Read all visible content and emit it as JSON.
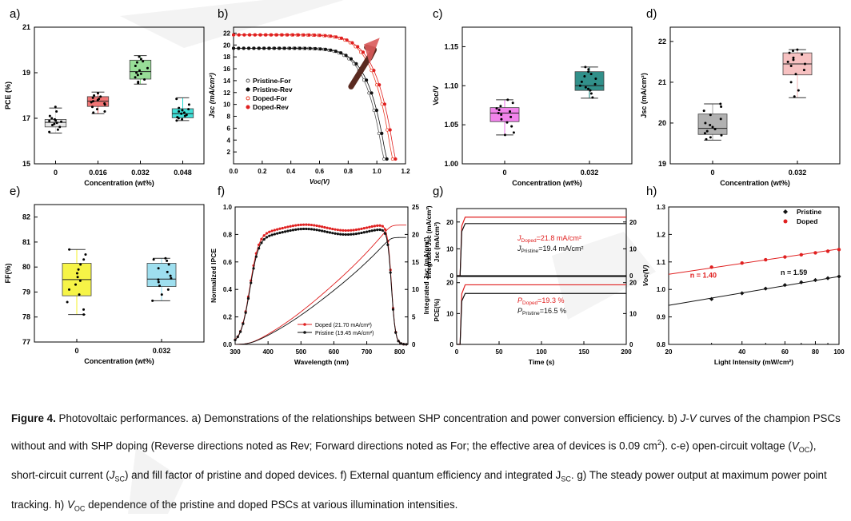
{
  "chart_data": [
    {
      "panel": "a)",
      "type": "box",
      "ylabel": "PCE (%)",
      "xlabel": "Concentration (wt%)",
      "ylim": [
        15,
        21
      ],
      "yticks": [
        15,
        17,
        19,
        21
      ],
      "categories": [
        "0",
        "0.016",
        "0.032",
        "0.048"
      ],
      "colors": [
        "#e3e3e3",
        "#ee5c5c",
        "#86d886",
        "#1ed9d0"
      ],
      "boxes": [
        {
          "min": 16.35,
          "q1": 16.62,
          "median": 16.82,
          "q3": 16.95,
          "max": 17.45,
          "points": [
            17.5,
            17.3,
            17.1,
            17.0,
            16.95,
            16.9,
            16.88,
            16.85,
            16.8,
            16.75,
            16.7,
            16.62,
            16.5,
            16.4
          ]
        },
        {
          "min": 17.2,
          "q1": 17.52,
          "median": 17.75,
          "q3": 17.95,
          "max": 18.15,
          "points": [
            18.1,
            18.0,
            17.95,
            17.9,
            17.85,
            17.8,
            17.75,
            17.7,
            17.65,
            17.6,
            17.5,
            17.4,
            17.3,
            17.25
          ]
        },
        {
          "min": 18.5,
          "q1": 18.72,
          "median": 19.05,
          "q3": 19.55,
          "max": 19.75,
          "points": [
            19.7,
            19.6,
            19.5,
            19.45,
            19.3,
            19.2,
            19.1,
            19.0,
            18.95,
            18.9,
            18.8,
            18.7,
            18.6,
            18.55
          ]
        },
        {
          "min": 16.9,
          "q1": 17.02,
          "median": 17.2,
          "q3": 17.42,
          "max": 17.9,
          "points": [
            17.85,
            17.6,
            17.45,
            17.4,
            17.35,
            17.3,
            17.25,
            17.2,
            17.15,
            17.1,
            17.05,
            17.0,
            16.95,
            16.9
          ]
        }
      ]
    },
    {
      "panel": "b)",
      "type": "line",
      "ylabel": "Jsc (mA/cm²)",
      "xlabel": "Voc(V)",
      "xlim": [
        0.0,
        1.2
      ],
      "ylim": [
        0,
        23
      ],
      "xticks": [
        "0.0",
        "0.2",
        "0.4",
        "0.6",
        "0.8",
        "1.0",
        "1.2"
      ],
      "yticks": [
        2,
        4,
        6,
        8,
        10,
        12,
        14,
        16,
        18,
        20,
        22
      ],
      "series": [
        {
          "name": "Pristine-For",
          "color": "#555555",
          "filled": false,
          "jsc": 19.45,
          "voc": 1.05
        },
        {
          "name": "Pristine-Rev",
          "color": "#111111",
          "filled": true,
          "jsc": 19.45,
          "voc": 1.07
        },
        {
          "name": "Doped-For",
          "color": "#e8412a",
          "filled": false,
          "jsc": 21.7,
          "voc": 1.11
        },
        {
          "name": "Doped-Rev",
          "color": "#e02020",
          "filled": true,
          "jsc": 21.7,
          "voc": 1.13
        }
      ]
    },
    {
      "panel": "c)",
      "type": "box",
      "ylabel": "Voc/V",
      "xlabel": "Concentration (wt%)",
      "ylim": [
        1.0,
        1.175
      ],
      "yticks": [
        "1.00",
        "1.05",
        "1.10",
        "1.15"
      ],
      "categories": [
        "0",
        "0.032"
      ],
      "colors": [
        "#ee6de8",
        "#0d7c76"
      ],
      "boxes": [
        {
          "min": 1.037,
          "q1": 1.054,
          "median": 1.065,
          "q3": 1.072,
          "max": 1.082,
          "points": [
            1.082,
            1.078,
            1.074,
            1.071,
            1.069,
            1.067,
            1.065,
            1.063,
            1.06,
            1.057,
            1.053,
            1.048,
            1.04,
            1.037
          ]
        },
        {
          "min": 1.084,
          "q1": 1.094,
          "median": 1.1,
          "q3": 1.118,
          "max": 1.124,
          "points": [
            1.124,
            1.121,
            1.118,
            1.115,
            1.112,
            1.109,
            1.105,
            1.102,
            1.1,
            1.098,
            1.096,
            1.094,
            1.09,
            1.085
          ]
        }
      ]
    },
    {
      "panel": "d)",
      "type": "box",
      "ylabel": "Jsc (mA/cm²)",
      "xlabel": "Concentration (wt%)",
      "ylim": [
        19,
        22.35
      ],
      "yticks": [
        19,
        20,
        21,
        22
      ],
      "categories": [
        "0",
        "0.032"
      ],
      "colors": [
        "#a3a3a3",
        "#f6b6b6"
      ],
      "boxes": [
        {
          "min": 19.58,
          "q1": 19.72,
          "median": 19.87,
          "q3": 20.22,
          "max": 20.47,
          "points": [
            20.47,
            20.4,
            20.3,
            20.2,
            20.1,
            20.0,
            19.95,
            19.9,
            19.85,
            19.8,
            19.75,
            19.7,
            19.65,
            19.6
          ]
        },
        {
          "min": 20.62,
          "q1": 21.18,
          "median": 21.45,
          "q3": 21.72,
          "max": 21.8,
          "points": [
            21.8,
            21.77,
            21.72,
            21.68,
            21.6,
            21.55,
            21.5,
            21.45,
            21.4,
            21.3,
            21.2,
            21.0,
            20.8,
            20.65
          ]
        }
      ]
    },
    {
      "panel": "e)",
      "type": "box",
      "ylabel": "FF(%)",
      "xlabel": "Concentration (wt%)",
      "ylim": [
        77,
        82.5
      ],
      "yticks": [
        77,
        78,
        79,
        80,
        81,
        82
      ],
      "categories": [
        "0",
        "0.032"
      ],
      "colors": [
        "#f5f227",
        "#8dd9ec"
      ],
      "boxes": [
        {
          "min": 78.1,
          "q1": 78.85,
          "median": 79.5,
          "q3": 80.15,
          "max": 80.7,
          "points": [
            80.7,
            80.5,
            80.3,
            80.1,
            79.9,
            79.75,
            79.6,
            79.45,
            79.3,
            79.1,
            78.9,
            78.6,
            78.3,
            78.1
          ]
        },
        {
          "min": 78.65,
          "q1": 79.22,
          "median": 79.52,
          "q3": 80.15,
          "max": 80.35,
          "points": [
            80.35,
            80.3,
            80.25,
            80.1,
            79.95,
            79.8,
            79.65,
            79.55,
            79.5,
            79.4,
            79.25,
            79.1,
            78.9,
            78.65
          ]
        }
      ]
    },
    {
      "panel": "f)",
      "type": "line",
      "ylabel": "Normalized IPCE",
      "y2label": "Integrated Jsc (mA/cm²)",
      "xlabel": "Wavelength (nm)",
      "xlim": [
        300,
        825
      ],
      "ylim": [
        0,
        1.0
      ],
      "y2lim": [
        0,
        25
      ],
      "xticks": [
        300,
        400,
        500,
        600,
        700,
        800
      ],
      "yticks": [
        "0.0",
        "0.2",
        "0.4",
        "0.6",
        "0.8",
        "1.0"
      ],
      "y2ticks": [
        0,
        5,
        10,
        15,
        20,
        25
      ],
      "series": [
        {
          "name": "Doped",
          "legend_label": "Doped    (21.70 mA/cm²)",
          "color": "#e02020",
          "plateau": 0.85,
          "integrated_final": 21.7
        },
        {
          "name": "Pristine",
          "legend_label": "Pristine (19.45 mA/cm²)",
          "color": "#111111",
          "plateau": 0.82,
          "integrated_final": 19.45
        }
      ]
    },
    {
      "panel": "g)",
      "type": "line",
      "xlabel": "Time (s)",
      "xlim": [
        0,
        200
      ],
      "xticks": [
        0,
        50,
        100,
        150,
        200
      ],
      "top": {
        "ylabel": "Jsc (mA/cm²)",
        "ylim": [
          0,
          25
        ],
        "yticks": [
          0,
          10,
          20
        ],
        "series": [
          {
            "name": "Doped",
            "color": "#e02020",
            "value": 21.8
          },
          {
            "name": "Pristine",
            "color": "#111111",
            "value": 19.4
          }
        ],
        "label_doped": "=21.8 mA/cm²",
        "label_pristine": "=19.4 mA/cm²"
      },
      "bottom": {
        "ylabel": "PCE(%)",
        "ylim": [
          0,
          22
        ],
        "yticks": [
          0,
          10,
          20
        ],
        "series": [
          {
            "name": "Doped",
            "color": "#e02020",
            "value": 19.3
          },
          {
            "name": "Pristine",
            "color": "#111111",
            "value": 16.5
          }
        ],
        "label_doped": "=19.3 %",
        "label_pristine": "=16.5 %"
      },
      "shared_ylabel": "Integrated Jsc (mA/cm²)"
    },
    {
      "panel": "h)",
      "type": "scatter",
      "ylabel": "Voc(V)",
      "xlabel": "Light Intensity (mW/cm²)",
      "xscale": "log",
      "xlim": [
        20,
        100
      ],
      "ylim": [
        0.8,
        1.3
      ],
      "xticks": [
        20,
        40,
        60,
        80,
        100
      ],
      "xtick_labels": [
        "20",
        "40",
        "60",
        "80",
        "100"
      ],
      "minor_xticks": [
        30,
        50,
        70,
        90
      ],
      "yticks": [
        "0.8",
        "0.9",
        "1.0",
        "1.1",
        "1.2",
        "1.3"
      ],
      "legend": "top-right",
      "series": [
        {
          "name": "Pristine",
          "color": "#111111",
          "marker": "diamond",
          "x": [
            30,
            40,
            50,
            60,
            70,
            80,
            90,
            100
          ],
          "y": [
            0.965,
            0.986,
            1.003,
            1.016,
            1.026,
            1.034,
            1.041,
            1.047
          ],
          "fit": [
            [
              20,
              0.942
            ],
            [
              100,
              1.047
            ]
          ],
          "label": "n = 1.59"
        },
        {
          "name": "Doped",
          "color": "#e02020",
          "marker": "circle",
          "x": [
            30,
            40,
            50,
            60,
            70,
            80,
            90,
            100
          ],
          "y": [
            1.081,
            1.096,
            1.108,
            1.118,
            1.126,
            1.133,
            1.139,
            1.145
          ],
          "fit": [
            [
              20,
              1.055
            ],
            [
              100,
              1.147
            ]
          ],
          "label": "n = 1.40"
        }
      ]
    }
  ],
  "panel_labels": [
    "a)",
    "b)",
    "c)",
    "d)",
    "e)",
    "f)",
    "g)",
    "h)"
  ],
  "caption": {
    "figure_label": "Figure 4.",
    "text_1": " Photovoltaic performances. a) Demonstrations of the relationships between SHP concentration and power conversion efficiency. b) ",
    "jv": "J-V",
    "text_2": " curves of the champion PSCs without and with SHP doping (Reverse directions noted as Rev; Forward directions noted as For; the effective area of devices is 0.09 cm",
    "sup_2": "2",
    "text_3": "). c-e) open-circuit voltage (",
    "voc": "V",
    "oc": "OC",
    "text_4": "), short-circuit current (",
    "jsc": "J",
    "sc": "SC",
    "text_5": ") and fill factor of pristine and doped devices. f) External quantum efficiency and integrated J",
    "sc2": "SC",
    "text_6": ". g) The steady power output at maximum power point tracking. h) ",
    "voc2": "V",
    "oc2": "OC",
    "text_7": " dependence of the pristine and doped PSCs at various illumination intensities."
  },
  "colors": {
    "watermark": "#f0f0f0"
  }
}
